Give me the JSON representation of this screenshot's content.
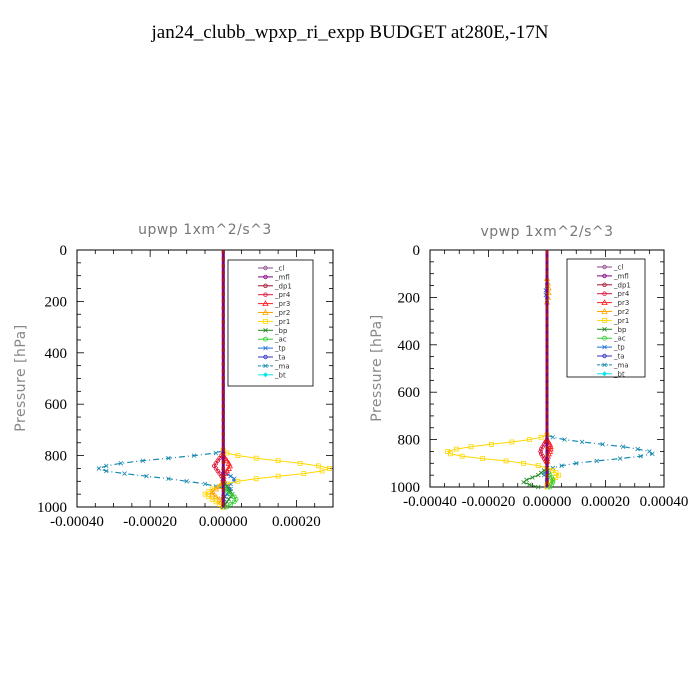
{
  "title": "jan24_clubb_wpxp_ri_expp  BUDGET at280E,-17N",
  "legend_entries": [
    {
      "name": "_cl",
      "color": "#8b4789"
    },
    {
      "name": "_mfl",
      "color": "#800080"
    },
    {
      "name": "_dp1",
      "color": "#a0142e"
    },
    {
      "name": "_pr4",
      "color": "#dc143c"
    },
    {
      "name": "_pr3",
      "color": "#ff2020"
    },
    {
      "name": "_pr2",
      "color": "#ffa500"
    },
    {
      "name": "_pr1",
      "color": "#ffd700"
    },
    {
      "name": "_bp",
      "color": "#228b22"
    },
    {
      "name": "_ac",
      "color": "#32cd32"
    },
    {
      "name": "_tp",
      "color": "#1e6fdc"
    },
    {
      "name": "_ta",
      "color": "#3030c0"
    },
    {
      "name": "_ma",
      "color": "#1a8ab0"
    },
    {
      "name": "_bt",
      "color": "#00e5ee"
    }
  ],
  "chart_data": [
    {
      "type": "line",
      "title": "upwp   1xm^2/s^3",
      "ylabel": "Pressure [hPa]",
      "xlabel": "",
      "xlim": [
        -0.0004,
        0.0003
      ],
      "ylim": [
        1000,
        0
      ],
      "x_ticks": [
        "-0.00040",
        "-0.00020",
        "0.00000",
        "0.00020"
      ],
      "x_tick_values": [
        -0.0004,
        -0.0002,
        0,
        0.0002
      ],
      "y_ticks": [
        "0",
        "200",
        "400",
        "600",
        "800",
        "1000"
      ],
      "y_tick_values": [
        0,
        200,
        400,
        600,
        800,
        1000
      ],
      "legend_position": "top-right",
      "series": [
        {
          "name": "_ma",
          "y": [
            780,
            790,
            800,
            810,
            820,
            830,
            840,
            850,
            860,
            870,
            880,
            890,
            900,
            910,
            920,
            930,
            940,
            950,
            960,
            970,
            980,
            990,
            1000
          ],
          "x": [
            0,
            -2e-05,
            -8e-05,
            -0.00015,
            -0.00022,
            -0.00028,
            -0.00032,
            -0.00034,
            -0.00032,
            -0.00027,
            -0.00021,
            -0.00015,
            -0.0001,
            -5e-05,
            -2e-05,
            1e-05,
            2e-05,
            1e-05,
            0,
            0,
            0,
            0,
            0
          ]
        },
        {
          "name": "_tp",
          "y": [
            860,
            870,
            880,
            890,
            900,
            910,
            920,
            930,
            940,
            950,
            960,
            970,
            980,
            990,
            1000
          ],
          "x": [
            0,
            1e-05,
            2e-05,
            3e-05,
            3e-05,
            2e-05,
            1.5e-05,
            2e-05,
            1.5e-05,
            1e-05,
            5e-06,
            0,
            0,
            0,
            0
          ]
        },
        {
          "name": "_pr1",
          "y": [
            780,
            790,
            800,
            810,
            820,
            830,
            840,
            850,
            860,
            870,
            880,
            890,
            900,
            910,
            920,
            930,
            940,
            950,
            960,
            970,
            980,
            990,
            1000
          ],
          "x": [
            0,
            1e-05,
            4e-05,
            9e-05,
            0.00015,
            0.00021,
            0.00026,
            0.00029,
            0.00027,
            0.00022,
            0.00015,
            9e-05,
            4e-05,
            1e-05,
            -1e-05,
            -3e-05,
            -4e-05,
            -5e-05,
            -4e-05,
            -3e-05,
            -2e-05,
            -1e-05,
            0
          ]
        },
        {
          "name": "_pr2",
          "y": [
            900,
            910,
            920,
            930,
            940,
            950,
            960,
            970,
            980,
            990,
            1000
          ],
          "x": [
            0,
            -5e-06,
            -1e-05,
            -2e-05,
            -3e-05,
            -3e-05,
            -2e-05,
            -1e-05,
            -5e-06,
            0,
            0
          ]
        },
        {
          "name": "_pr4",
          "y": [
            790,
            800,
            810,
            820,
            830,
            840,
            850,
            860,
            870,
            880,
            890,
            900
          ],
          "x": [
            0,
            -5e-06,
            -1e-05,
            -1.5e-05,
            -2e-05,
            -2.5e-05,
            -2e-05,
            -1.5e-05,
            -1e-05,
            -5e-06,
            0,
            0
          ]
        },
        {
          "name": "_pr3",
          "y": [
            800,
            810,
            820,
            830,
            840,
            850,
            860,
            870,
            880,
            890
          ],
          "x": [
            0,
            5e-06,
            1e-05,
            1.5e-05,
            1.8e-05,
            1.5e-05,
            1e-05,
            5e-06,
            0,
            0
          ]
        },
        {
          "name": "_bp",
          "y": [
            900,
            910,
            920,
            930,
            940,
            950,
            960,
            970,
            980,
            990,
            1000
          ],
          "x": [
            0,
            5e-06,
            1e-05,
            1.5e-05,
            2e-05,
            2.5e-05,
            2e-05,
            1.5e-05,
            1e-05,
            5e-06,
            0
          ]
        },
        {
          "name": "_ac",
          "y": [
            920,
            930,
            940,
            950,
            960,
            970,
            980,
            990,
            1000
          ],
          "x": [
            0,
            5e-06,
            1e-05,
            2e-05,
            3e-05,
            3.5e-05,
            3e-05,
            2e-05,
            1e-05
          ]
        },
        {
          "name": "_mfl",
          "y": [
            0,
            1000
          ],
          "x": [
            0,
            0
          ]
        },
        {
          "name": "_dp1",
          "y": [
            0,
            1000
          ],
          "x": [
            0,
            0
          ]
        }
      ]
    },
    {
      "type": "line",
      "title": "vpwp   1xm^2/s^3",
      "ylabel": "Pressure [hPa]",
      "xlabel": "",
      "xlim": [
        -0.0004,
        0.0004
      ],
      "ylim": [
        1000,
        0
      ],
      "x_ticks": [
        "-0.00040",
        "-0.00020",
        "0.00000",
        "0.00020",
        "0.00040"
      ],
      "x_tick_values": [
        -0.0004,
        -0.0002,
        0,
        0.0002,
        0.0004
      ],
      "y_ticks": [
        "0",
        "200",
        "400",
        "600",
        "800",
        "1000"
      ],
      "y_tick_values": [
        0,
        200,
        400,
        600,
        800,
        1000
      ],
      "legend_position": "top-right",
      "series": [
        {
          "name": "_ma",
          "y": [
            780,
            790,
            800,
            810,
            820,
            830,
            840,
            850,
            860,
            870,
            880,
            890,
            900,
            910,
            920,
            930,
            940,
            950,
            960,
            970,
            980,
            990,
            1000
          ],
          "x": [
            0,
            2e-05,
            6e-05,
            0.00012,
            0.00019,
            0.00026,
            0.00031,
            0.00035,
            0.00036,
            0.00032,
            0.00025,
            0.00017,
            0.0001,
            5e-05,
            2e-05,
            0,
            -1e-05,
            -1e-05,
            0,
            0,
            0,
            0,
            0
          ]
        },
        {
          "name": "_pr1",
          "y": [
            780,
            790,
            800,
            810,
            820,
            830,
            840,
            850,
            860,
            870,
            880,
            890,
            900,
            910,
            920,
            930,
            940,
            950,
            960,
            970,
            980,
            990,
            1000
          ],
          "x": [
            0,
            -2e-05,
            -6e-05,
            -0.00012,
            -0.00019,
            -0.00026,
            -0.00031,
            -0.00034,
            -0.00033,
            -0.00029,
            -0.00022,
            -0.00014,
            -8e-05,
            -3e-05,
            0,
            2e-05,
            3e-05,
            4e-05,
            3e-05,
            2e-05,
            1e-05,
            0,
            0
          ]
        },
        {
          "name": "_pr2",
          "y": [
            120,
            140,
            160,
            180,
            200,
            220
          ],
          "x": [
            0,
            3e-06,
            5e-06,
            5e-06,
            3e-06,
            0
          ]
        },
        {
          "name": "_tp",
          "y": [
            150,
            170,
            190,
            210
          ],
          "x": [
            0,
            -4e-06,
            -4e-06,
            0
          ]
        },
        {
          "name": "_pr4",
          "y": [
            800,
            810,
            820,
            830,
            840,
            850,
            860,
            870,
            880,
            890,
            900
          ],
          "x": [
            0,
            -5e-06,
            -1e-05,
            -1.5e-05,
            -2e-05,
            -2.2e-05,
            -2e-05,
            -1.5e-05,
            -1e-05,
            -5e-06,
            0
          ]
        },
        {
          "name": "_pr3",
          "y": [
            800,
            810,
            820,
            830,
            840,
            850,
            860,
            870,
            880,
            890
          ],
          "x": [
            0,
            5e-06,
            1e-05,
            1.2e-05,
            1.2e-05,
            1e-05,
            6e-06,
            3e-06,
            0,
            0
          ]
        },
        {
          "name": "_bp",
          "y": [
            920,
            930,
            940,
            950,
            960,
            970,
            980,
            990,
            1000
          ],
          "x": [
            0,
            -1e-05,
            -2e-05,
            -3e-05,
            -5e-05,
            -7e-05,
            -8e-05,
            -6e-05,
            -3e-05
          ]
        },
        {
          "name": "_ac",
          "y": [
            930,
            940,
            950,
            960,
            970,
            980,
            990,
            1000
          ],
          "x": [
            0,
            5e-06,
            1e-05,
            1.5e-05,
            2e-05,
            2e-05,
            1.5e-05,
            1e-05
          ]
        },
        {
          "name": "_mfl",
          "y": [
            0,
            1000
          ],
          "x": [
            0,
            0
          ]
        },
        {
          "name": "_dp1",
          "y": [
            0,
            1000
          ],
          "x": [
            0,
            0
          ]
        }
      ]
    }
  ]
}
